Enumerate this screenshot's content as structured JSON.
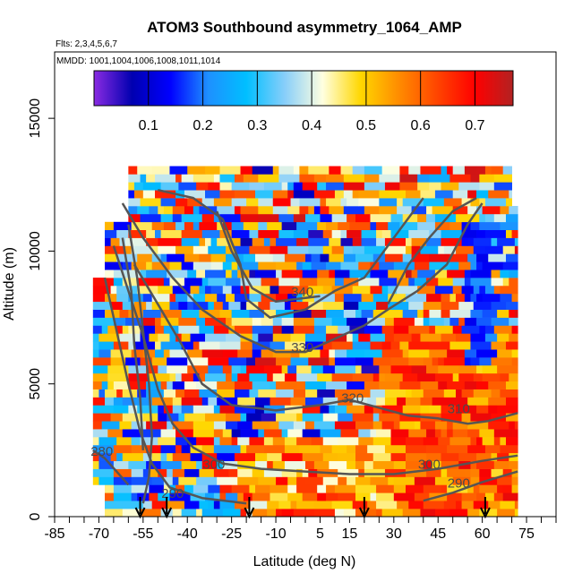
{
  "chart_data": {
    "type": "heatmap",
    "title": "ATOM3 Southbound asymmetry_1064_AMP",
    "subtitle_flights": "Flts: 2,3,4,5,6,7",
    "subtitle_dates": "MMDD: 1001,1004,1006,1008,1011,1014",
    "xlabel": "Latitude (deg N)",
    "ylabel": "Altitude (m)",
    "xlim": [
      -85,
      85
    ],
    "ylim": [
      0,
      17500
    ],
    "x_ticks": [
      -85,
      -70,
      -55,
      -40,
      -25,
      -10,
      5,
      15,
      30,
      45,
      60,
      75
    ],
    "x_minor_ticks": [
      -80,
      -75,
      -65,
      -60,
      -50,
      -45,
      -35,
      -30,
      -20,
      -15,
      -5,
      0,
      10,
      20,
      25,
      35,
      40,
      50,
      55,
      65,
      70,
      80,
      85
    ],
    "y_ticks": [
      0,
      5000,
      10000,
      15000
    ],
    "colorbar": {
      "range": [
        0.0,
        0.77
      ],
      "ticks": [
        "0.1",
        "0.2",
        "0.3",
        "0.4",
        "0.5",
        "0.6",
        "0.7"
      ],
      "tick_values": [
        0.1,
        0.2,
        0.3,
        0.4,
        0.5,
        0.6,
        0.7
      ],
      "colors": [
        "#8a2be2",
        "#0000b0",
        "#0000ff",
        "#1e90ff",
        "#00bfff",
        "#87cefa",
        "#ffffe0",
        "#ffd700",
        "#ff8c00",
        "#ff4500",
        "#ff0000",
        "#b22222"
      ]
    },
    "contours": [
      {
        "label": "340",
        "label_at": [
          -1,
          8300
        ]
      },
      {
        "label": "330",
        "label_at": [
          -1,
          6200
        ]
      },
      {
        "label": "320",
        "label_at": [
          16,
          4300
        ]
      },
      {
        "label": "310",
        "label_at": [
          52,
          3900
        ]
      },
      {
        "label": "300",
        "label_at": [
          -31,
          1800
        ]
      },
      {
        "label": "300",
        "label_at": [
          42,
          1800
        ]
      },
      {
        "label": "290",
        "label_at": [
          -45,
          700
        ]
      },
      {
        "label": "290",
        "label_at": [
          52,
          1100
        ]
      },
      {
        "label": "280",
        "label_at": [
          -69,
          2300
        ]
      }
    ],
    "arrows_lat": [
      -56,
      -47,
      -19,
      20,
      61
    ],
    "contour_color": "#555555",
    "data_region": {
      "lat_range": [
        -72,
        72
      ],
      "alt_range": [
        0,
        13000
      ]
    }
  }
}
